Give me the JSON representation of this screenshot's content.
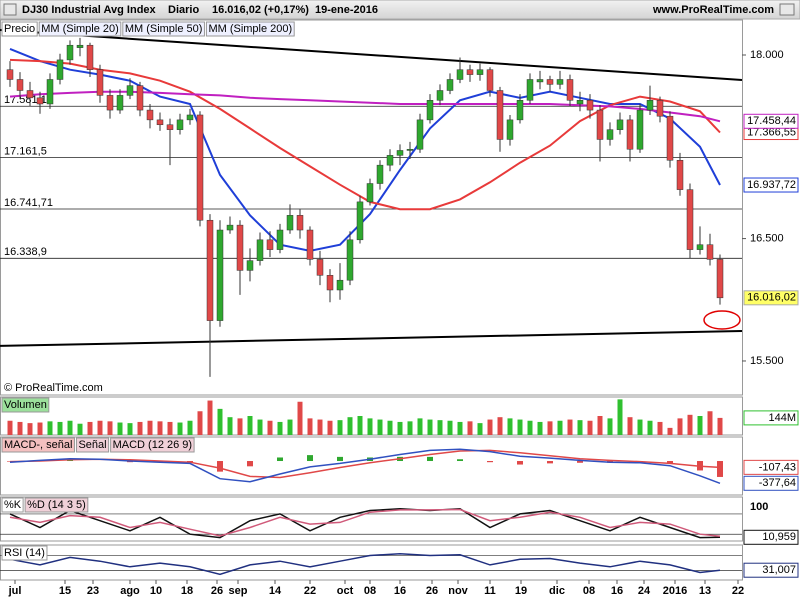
{
  "header": {
    "title": "DJ30 Industrial Avg Index",
    "period": "Diario",
    "last": "16.016,02 (+0,17%)",
    "date": "19-ene-2016",
    "site": "www.ProRealTime.com"
  },
  "chart_data": [
    {
      "type": "candlestick",
      "name": "Precio",
      "up_color": "#2fa82f",
      "down_color": "#e04848",
      "last_label": "16.016,02",
      "credit": "© ProRealTime.com",
      "x": [
        0,
        1,
        2,
        3,
        4,
        5,
        6,
        7,
        8,
        9,
        10,
        11,
        12,
        13,
        14,
        15,
        16,
        17,
        18,
        19,
        20,
        21,
        22,
        23,
        24,
        25,
        26,
        27,
        28,
        29,
        30,
        31,
        32,
        33,
        34,
        35,
        36,
        37,
        38,
        39,
        40,
        41,
        42,
        43,
        44,
        45,
        46,
        47,
        48,
        49,
        50,
        51,
        52,
        53,
        54,
        55,
        56,
        57,
        58,
        59,
        60,
        61,
        62,
        63,
        64,
        65,
        66,
        67,
        68,
        69,
        70,
        71
      ],
      "open": [
        17880,
        17800,
        17710,
        17650,
        17600,
        17800,
        17960,
        18060,
        18080,
        17880,
        17670,
        17550,
        17670,
        17750,
        17550,
        17470,
        17430,
        17390,
        17470,
        17510,
        16650,
        15830,
        16570,
        16610,
        16240,
        16320,
        16490,
        16410,
        16570,
        16690,
        16570,
        16330,
        16200,
        16080,
        16160,
        16490,
        16800,
        16950,
        17100,
        17180,
        17220,
        17230,
        17470,
        17630,
        17710,
        17800,
        17880,
        17840,
        17880,
        17710,
        17310,
        17470,
        17630,
        17780,
        17800,
        17760,
        17800,
        17600,
        17630,
        17550,
        17310,
        17390,
        17470,
        17230,
        17550,
        17630,
        17500,
        17140,
        16900,
        16410,
        16450,
        16330
      ],
      "high": [
        17950,
        17860,
        17780,
        17700,
        17850,
        18010,
        18120,
        18140,
        18100,
        17920,
        17720,
        17720,
        17810,
        17780,
        17600,
        17530,
        17480,
        17520,
        17560,
        17540,
        16700,
        16650,
        16680,
        16650,
        16420,
        16550,
        16560,
        16620,
        16780,
        16740,
        16600,
        16400,
        16250,
        16300,
        16560,
        16850,
        16990,
        17140,
        17230,
        17270,
        17290,
        17520,
        17680,
        17760,
        17850,
        17980,
        17920,
        17930,
        17900,
        17740,
        17510,
        17680,
        17850,
        17870,
        17830,
        17870,
        17840,
        17700,
        17680,
        17590,
        17450,
        17530,
        17510,
        17600,
        17750,
        17660,
        17540,
        17200,
        16950,
        16600,
        16540,
        16370
      ],
      "low": [
        17740,
        17640,
        17580,
        17520,
        17560,
        17760,
        17920,
        17990,
        17820,
        17610,
        17480,
        17520,
        17640,
        17500,
        17400,
        17380,
        17100,
        17350,
        17430,
        16600,
        15370,
        15780,
        16540,
        16040,
        16150,
        16280,
        16350,
        16380,
        16540,
        16500,
        16280,
        16120,
        15980,
        16000,
        16120,
        16460,
        16770,
        16900,
        17050,
        17100,
        17150,
        17200,
        17440,
        17590,
        17680,
        17770,
        17780,
        17790,
        17660,
        17210,
        17260,
        17440,
        17600,
        17720,
        17700,
        17720,
        17580,
        17540,
        17480,
        17130,
        17260,
        17350,
        17130,
        17200,
        17510,
        17450,
        17080,
        16850,
        16340,
        16370,
        16280,
        15960
      ],
      "close": [
        17800,
        17710,
        17650,
        17600,
        17800,
        17960,
        18080,
        18080,
        17880,
        17670,
        17550,
        17670,
        17750,
        17550,
        17470,
        17430,
        17390,
        17470,
        17510,
        16650,
        15830,
        16570,
        16610,
        16240,
        16320,
        16490,
        16410,
        16570,
        16690,
        16570,
        16330,
        16200,
        16080,
        16160,
        16490,
        16800,
        16950,
        17100,
        17180,
        17220,
        17230,
        17470,
        17630,
        17710,
        17800,
        17880,
        17840,
        17880,
        17710,
        17310,
        17470,
        17630,
        17800,
        17800,
        17760,
        17800,
        17630,
        17630,
        17550,
        17310,
        17390,
        17470,
        17230,
        17550,
        17630,
        17500,
        17140,
        16900,
        16410,
        16450,
        16330,
        16016.02
      ],
      "xlim": [
        -1,
        73.2
      ],
      "xticks": [
        {
          "value": 0.5,
          "label": "jul"
        },
        {
          "value": 5.5,
          "label": "15"
        },
        {
          "value": 8.3,
          "label": "23"
        },
        {
          "value": 12,
          "label": "ago"
        },
        {
          "value": 14.6,
          "label": "10"
        },
        {
          "value": 17.7,
          "label": "18"
        },
        {
          "value": 20.7,
          "label": "26"
        },
        {
          "value": 22.8,
          "label": "sep"
        },
        {
          "value": 26.5,
          "label": "14"
        },
        {
          "value": 30,
          "label": "22"
        },
        {
          "value": 33.5,
          "label": "oct"
        },
        {
          "value": 36,
          "label": "08"
        },
        {
          "value": 39,
          "label": "16"
        },
        {
          "value": 42.2,
          "label": "26"
        },
        {
          "value": 44.8,
          "label": "nov"
        },
        {
          "value": 48,
          "label": "11"
        },
        {
          "value": 51.1,
          "label": "19"
        },
        {
          "value": 54.7,
          "label": "dic"
        },
        {
          "value": 57.9,
          "label": "08"
        },
        {
          "value": 60.7,
          "label": "16"
        },
        {
          "value": 63.4,
          "label": "24"
        },
        {
          "value": 66.5,
          "label": "2016"
        },
        {
          "value": 69.5,
          "label": "13"
        },
        {
          "value": 72.8,
          "label": "22"
        }
      ],
      "ylim": [
        15222,
        18286
      ],
      "yticks": [
        {
          "value": 18000,
          "label": "18.000"
        },
        {
          "value": 16500,
          "label": "16.500"
        },
        {
          "value": 15500,
          "label": "15.500"
        }
      ],
      "levels": [
        {
          "value": 17581.1,
          "label": "17.581,1"
        },
        {
          "value": 17161.5,
          "label": "17.161,5"
        },
        {
          "value": 16741.71,
          "label": "16.741,71"
        },
        {
          "value": 16338.9,
          "label": "16.338,9"
        }
      ],
      "trendlines": [
        {
          "x": [
            -1,
            73.2
          ],
          "values": [
            18204,
            17796
          ]
        },
        {
          "x": [
            -1,
            73.2
          ],
          "values": [
            15623,
            15745
          ]
        }
      ],
      "overlays": {
        "x": [
          0,
          3,
          6,
          9,
          12,
          15,
          18,
          21,
          24,
          27,
          30,
          33,
          36,
          39,
          42,
          45,
          48,
          51,
          54,
          57,
          60,
          63,
          66,
          69,
          71
        ],
        "series": [
          {
            "name": "MM (Simple 20)",
            "color": "#1f3fd8",
            "last_label": "16.937,72",
            "values": [
              18050,
              17950,
              17880,
              17840,
              17790,
              17660,
              17600,
              17020,
              16690,
              16450,
              16400,
              16450,
              16700,
              17060,
              17400,
              17630,
              17700,
              17650,
              17700,
              17650,
              17600,
              17600,
              17480,
              17250,
              16937.72
            ]
          },
          {
            "name": "MM (Simple 50)",
            "color": "#e83a3a",
            "last_label": "17.366,55",
            "values": [
              17960,
              17950,
              17930,
              17880,
              17850,
              17790,
              17700,
              17560,
              17400,
              17240,
              17090,
              16940,
              16800,
              16740,
              16740,
              16820,
              16960,
              17120,
              17260,
              17460,
              17590,
              17660,
              17620,
              17540,
              17366.55
            ]
          },
          {
            "name": "MM (Simple 200)",
            "color": "#c020c0",
            "last_label": "17.458,44",
            "values": [
              17660,
              17680,
              17690,
              17700,
              17700,
              17690,
              17680,
              17670,
              17650,
              17640,
              17630,
              17620,
              17610,
              17600,
              17600,
              17600,
              17600,
              17600,
              17600,
              17590,
              17580,
              17560,
              17530,
              17500,
              17458.44
            ]
          }
        ]
      }
    },
    {
      "type": "bar",
      "name": "Volumen",
      "last_label": "144M",
      "up_color": "#2fc02f",
      "down_color": "#e04848",
      "x": [
        0,
        1,
        2,
        3,
        4,
        5,
        6,
        7,
        8,
        9,
        10,
        11,
        12,
        13,
        14,
        15,
        16,
        17,
        18,
        19,
        20,
        21,
        22,
        23,
        24,
        25,
        26,
        27,
        28,
        29,
        30,
        31,
        32,
        33,
        34,
        35,
        36,
        37,
        38,
        39,
        40,
        41,
        42,
        43,
        44,
        45,
        46,
        47,
        48,
        49,
        50,
        51,
        52,
        53,
        54,
        55,
        56,
        57,
        58,
        59,
        60,
        61,
        62,
        63,
        64,
        65,
        66,
        67,
        68,
        69,
        70,
        71
      ],
      "values": [
        120,
        110,
        100,
        105,
        115,
        110,
        120,
        95,
        110,
        120,
        115,
        105,
        100,
        110,
        120,
        115,
        110,
        105,
        120,
        200,
        290,
        220,
        150,
        140,
        160,
        130,
        120,
        110,
        130,
        280,
        140,
        130,
        120,
        125,
        150,
        160,
        140,
        130,
        120,
        110,
        115,
        140,
        130,
        125,
        120,
        110,
        115,
        100,
        130,
        150,
        140,
        130,
        120,
        110,
        115,
        120,
        130,
        125,
        120,
        160,
        140,
        300,
        150,
        130,
        120,
        110,
        60,
        140,
        170,
        160,
        200,
        144
      ],
      "xlim": [
        -1,
        73.2
      ],
      "ylim": [
        0,
        320
      ]
    },
    {
      "type": "macd",
      "xlim": [
        -1,
        73.2
      ],
      "ylim": [
        -576,
        407
      ],
      "x": [
        0,
        3,
        6,
        9,
        12,
        15,
        18,
        21,
        24,
        27,
        30,
        33,
        36,
        39,
        42,
        45,
        48,
        51,
        54,
        57,
        60,
        63,
        66,
        69,
        71
      ],
      "histogram": {
        "name": "MACD-, señal",
        "up_color": "#2fa82f",
        "down_color": "#e04848",
        "values": [
          -10,
          10,
          20,
          0,
          -20,
          -20,
          -20,
          -180,
          -90,
          60,
          100,
          70,
          60,
          70,
          70,
          30,
          -20,
          -60,
          -40,
          -30,
          -30,
          -20,
          -40,
          -160,
          -270.21
        ]
      },
      "series": [
        {
          "name": "Señal",
          "color": "#e04848",
          "last_label": "-107,43",
          "values": [
            -10,
            0,
            20,
            30,
            20,
            0,
            -20,
            -120,
            -260,
            -280,
            -200,
            -110,
            -30,
            40,
            110,
            170,
            180,
            140,
            90,
            40,
            10,
            -10,
            -40,
            -90,
            -107.43
          ]
        },
        {
          "name": "MACD (12 26 9)",
          "color": "#3050c0",
          "last_label": "-377,64",
          "values": [
            -20,
            10,
            40,
            30,
            0,
            -20,
            -40,
            -300,
            -350,
            -220,
            -100,
            -40,
            30,
            110,
            180,
            200,
            160,
            80,
            50,
            10,
            -20,
            -30,
            -80,
            -250,
            -377.64
          ]
        }
      ]
    },
    {
      "type": "line",
      "xlim": [
        -1,
        73.2
      ],
      "ylim": [
        0,
        130
      ],
      "yticks": [
        100
      ],
      "levels": [
        80,
        20
      ],
      "x": [
        0,
        3,
        6,
        9,
        12,
        15,
        18,
        21,
        24,
        27,
        30,
        33,
        36,
        39,
        42,
        45,
        48,
        51,
        54,
        57,
        60,
        63,
        66,
        69,
        71
      ],
      "series": [
        {
          "name": "%K",
          "color": "#111111",
          "last_label": "10,959",
          "values": [
            80,
            40,
            90,
            60,
            30,
            70,
            20,
            10,
            60,
            80,
            30,
            70,
            90,
            95,
            90,
            95,
            40,
            80,
            90,
            60,
            30,
            70,
            40,
            10,
            10.959
          ]
        },
        {
          "name": "%D (14 3 5)",
          "color": "#d05a7a",
          "values": [
            70,
            55,
            75,
            70,
            40,
            55,
            35,
            15,
            40,
            70,
            50,
            55,
            85,
            92,
            92,
            93,
            60,
            70,
            85,
            70,
            40,
            55,
            50,
            20,
            14
          ]
        }
      ]
    },
    {
      "type": "line",
      "xlim": [
        -1,
        73.2
      ],
      "ylim": [
        5,
        98
      ],
      "levels": [
        70,
        30
      ],
      "x": [
        0,
        3,
        6,
        9,
        12,
        15,
        18,
        21,
        24,
        27,
        30,
        33,
        36,
        39,
        42,
        45,
        48,
        51,
        54,
        57,
        60,
        63,
        66,
        69,
        71
      ],
      "series": [
        {
          "name": "RSI (14)",
          "color": "#203080",
          "last_label": "31,007",
          "values": [
            60,
            45,
            65,
            55,
            40,
            50,
            40,
            20,
            45,
            55,
            40,
            55,
            70,
            75,
            70,
            72,
            45,
            60,
            62,
            50,
            40,
            55,
            45,
            25,
            31.007
          ]
        }
      ]
    }
  ]
}
